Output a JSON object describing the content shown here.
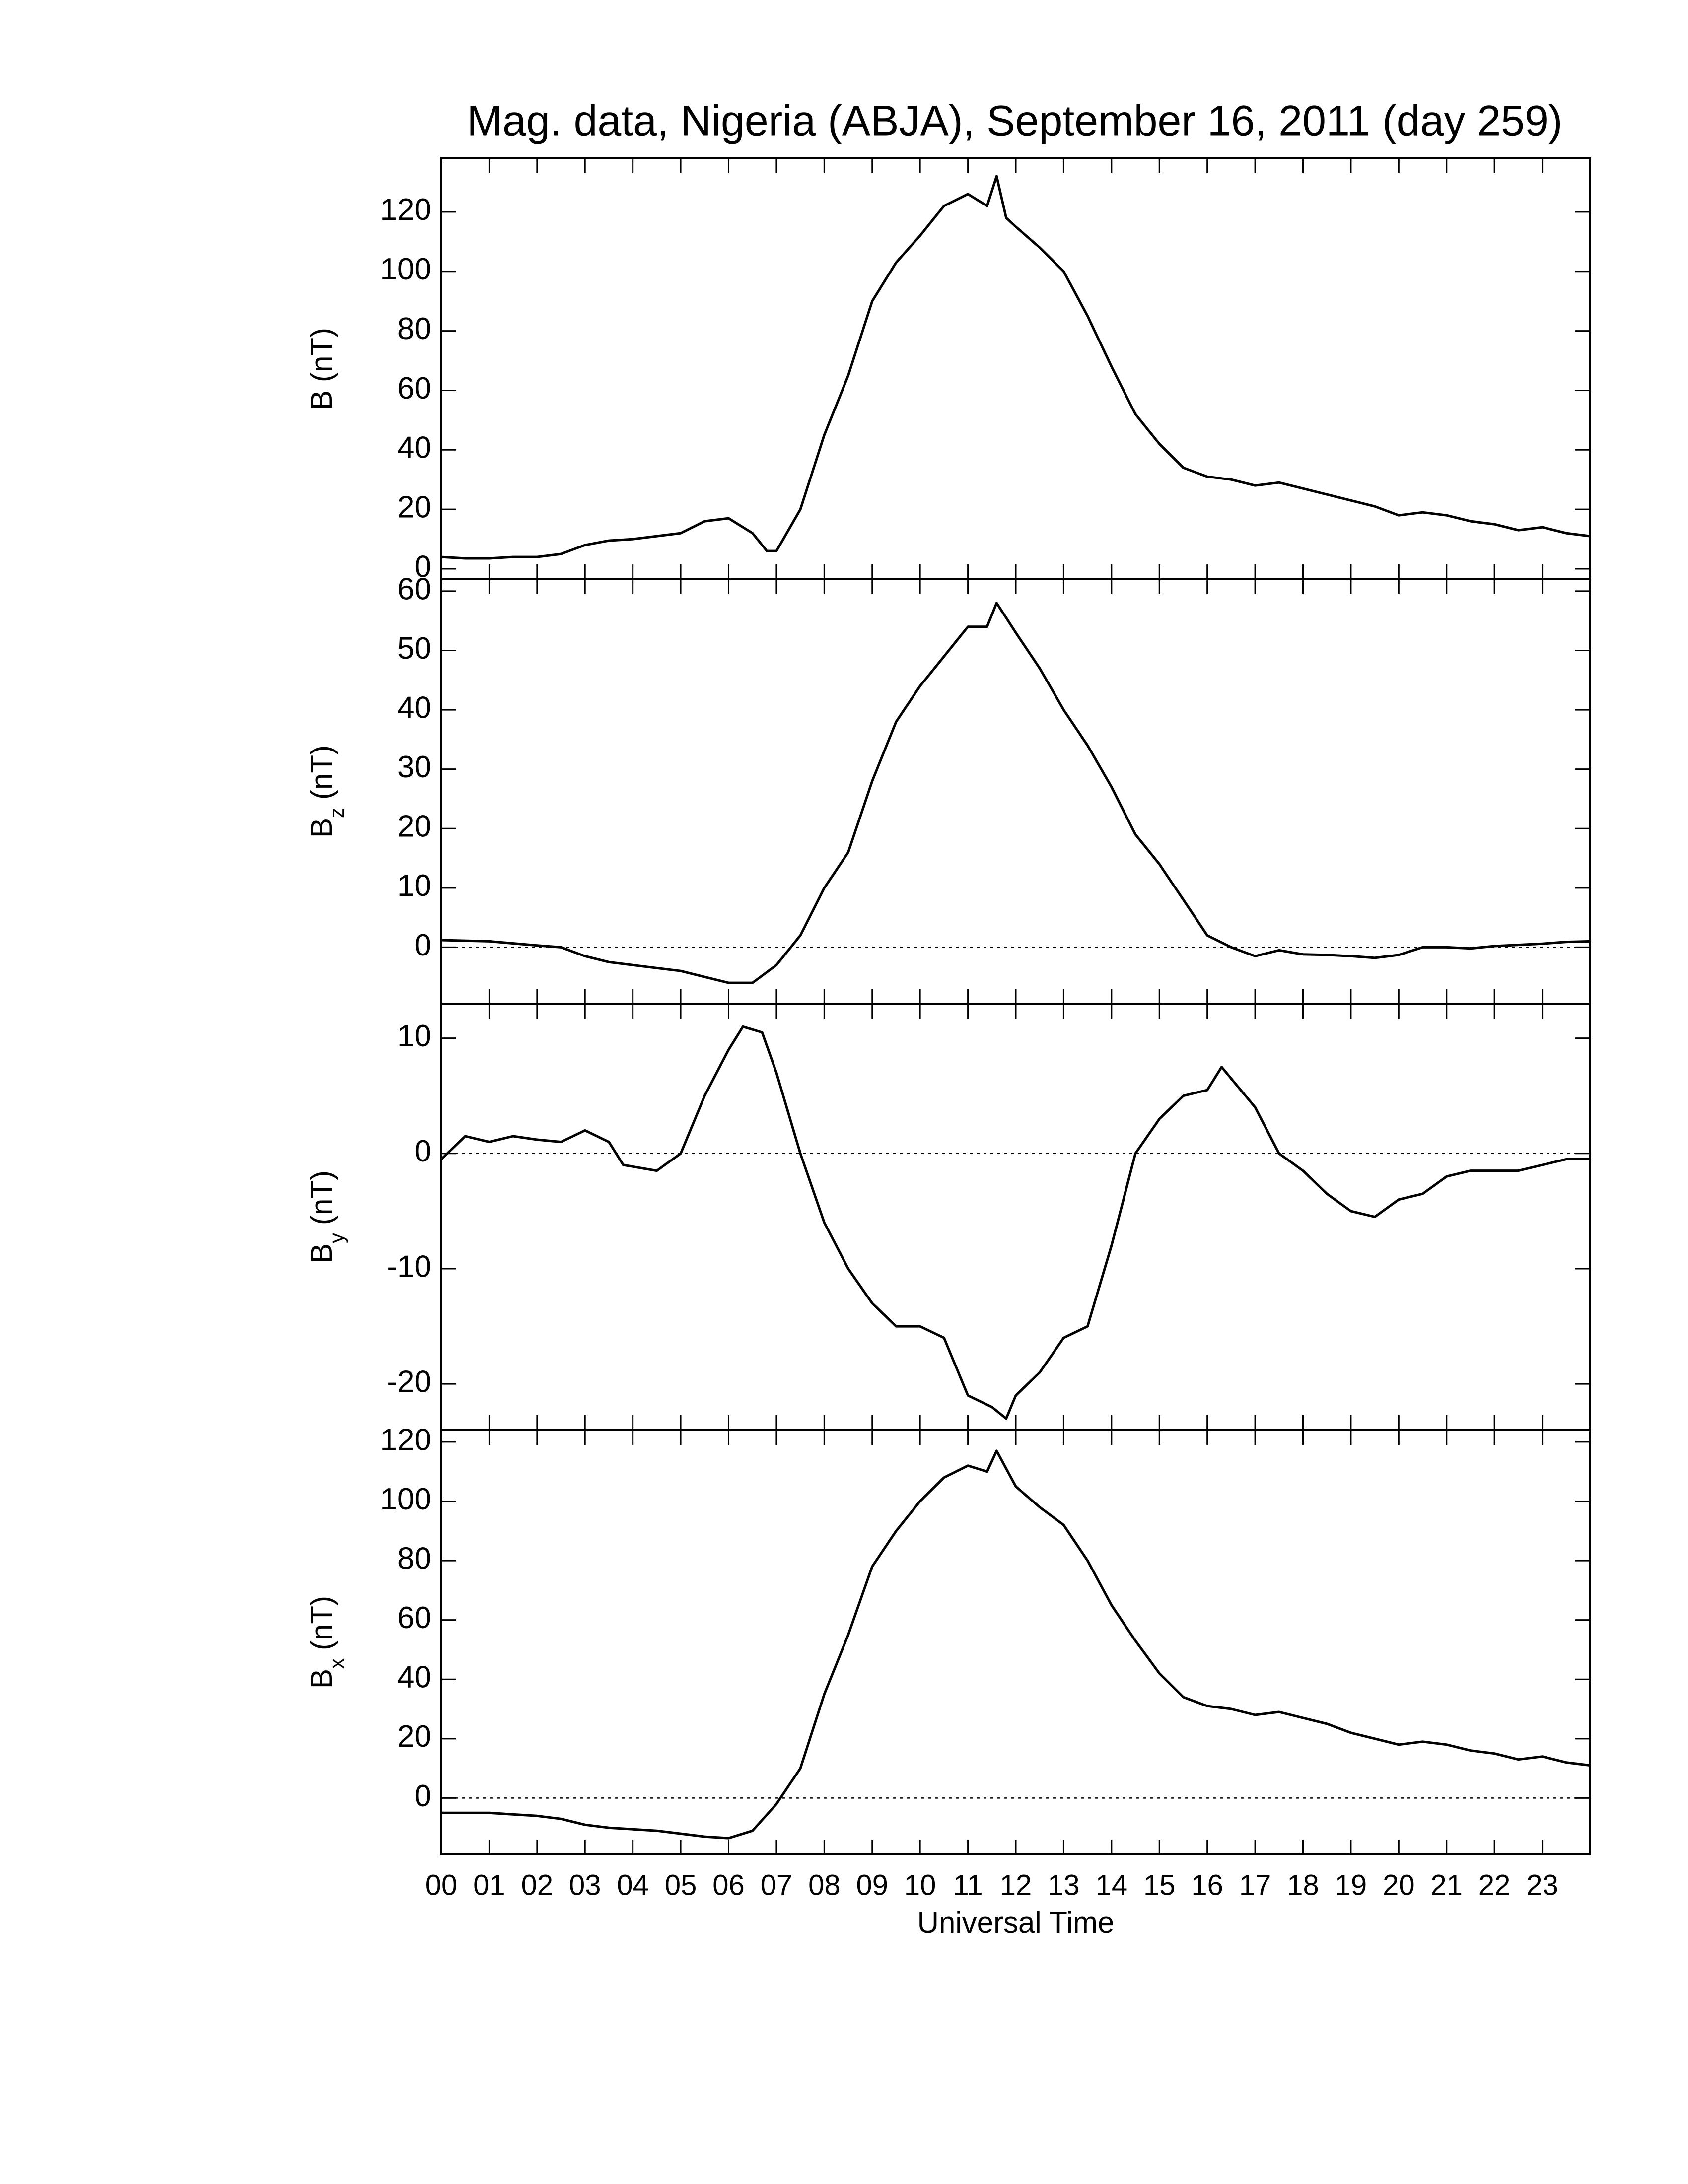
{
  "chart_data": [
    {
      "type": "line",
      "title": "Mag. data, Nigeria (ABJA), September 16, 2011 (day 259)",
      "ylabel": "B",
      "ylabel_unit": "(nT)",
      "ylim": [
        -3.5,
        138
      ],
      "yticks": [
        0,
        20,
        40,
        60,
        80,
        100,
        120
      ],
      "zero_line": false,
      "color": "#000000",
      "x": [
        0,
        0.5,
        1,
        1.5,
        2,
        2.5,
        3,
        3.5,
        4,
        4.5,
        5,
        5.5,
        6,
        6.5,
        6.8,
        7,
        7.5,
        8,
        8.5,
        9,
        9.5,
        10,
        10.5,
        11,
        11.4,
        11.6,
        11.8,
        12,
        12.5,
        13,
        13.5,
        14,
        14.5,
        15,
        15.5,
        16,
        16.5,
        17,
        17.5,
        18,
        18.5,
        19,
        19.5,
        20,
        20.5,
        21,
        21.5,
        22,
        22.5,
        23,
        23.5,
        24
      ],
      "values": [
        4,
        3.5,
        3.5,
        4,
        4,
        5,
        8,
        9.5,
        10,
        11,
        12,
        16,
        17,
        12,
        6,
        6,
        20,
        45,
        65,
        90,
        103,
        112,
        122,
        126,
        122,
        132,
        118,
        115,
        108,
        100,
        85,
        68,
        52,
        42,
        34,
        31,
        30,
        28,
        29,
        27,
        25,
        23,
        21,
        18,
        19,
        18,
        16,
        15,
        13,
        14,
        12,
        11
      ]
    },
    {
      "type": "line",
      "ylabel": "B",
      "ylabel_sub": "z",
      "ylabel_unit": "(nT)",
      "ylim": [
        -9.5,
        62
      ],
      "yticks": [
        0,
        10,
        20,
        30,
        40,
        50,
        60
      ],
      "zero_line": true,
      "color": "#000000",
      "x": [
        0,
        1,
        2,
        2.5,
        3,
        3.5,
        4,
        4.5,
        5,
        5.5,
        6,
        6.5,
        7,
        7.5,
        8,
        8.5,
        9,
        9.5,
        10,
        10.5,
        11,
        11.4,
        11.6,
        12,
        12.5,
        13,
        13.5,
        14,
        14.5,
        15,
        15.5,
        16,
        16.5,
        17,
        17.5,
        18,
        18.5,
        19,
        19.5,
        20,
        20.5,
        21,
        21.5,
        22,
        22.5,
        23,
        23.5,
        24
      ],
      "values": [
        1.2,
        1,
        0.3,
        0,
        -1.5,
        -2.5,
        -3,
        -3.5,
        -4,
        -5,
        -6,
        -6,
        -3,
        2,
        10,
        16,
        28,
        38,
        44,
        49,
        54,
        54,
        58,
        53,
        47,
        40,
        34,
        27,
        19,
        14,
        8,
        2,
        0,
        -1.5,
        -0.5,
        -1.2,
        -1.3,
        -1.5,
        -1.8,
        -1.3,
        0,
        0,
        -0.2,
        0.2,
        0.4,
        0.6,
        0.9,
        1
      ]
    },
    {
      "type": "line",
      "ylabel": "B",
      "ylabel_sub": "y",
      "ylabel_unit": "(nT)",
      "ylim": [
        -24,
        13
      ],
      "yticks": [
        -20,
        -10,
        0,
        10
      ],
      "zero_line": true,
      "color": "#000000",
      "x": [
        0,
        0.5,
        1,
        1.5,
        2,
        2.5,
        3,
        3.5,
        3.8,
        4.5,
        5,
        5.5,
        6,
        6.3,
        6.7,
        7,
        7.5,
        8,
        8.5,
        9,
        9.5,
        10,
        10.5,
        11,
        11.5,
        11.8,
        12,
        12.5,
        13,
        13.5,
        14,
        14.5,
        15,
        15.5,
        16,
        16.3,
        16.8,
        17,
        17.5,
        18,
        18.5,
        19,
        19.5,
        20,
        20.5,
        21,
        21.5,
        22,
        22.5,
        23,
        23.5,
        24
      ],
      "values": [
        -0.5,
        1.5,
        1,
        1.5,
        1.2,
        1,
        2,
        1,
        -1,
        -1.5,
        0,
        5,
        9,
        11,
        10.5,
        7,
        0,
        -6,
        -10,
        -13,
        -15,
        -15,
        -16,
        -21,
        -22,
        -23,
        -21,
        -19,
        -16,
        -15,
        -8,
        0,
        3,
        5,
        5.5,
        7.5,
        5,
        4,
        0,
        -1.5,
        -3.5,
        -5,
        -5.5,
        -4,
        -3.5,
        -2,
        -1.5,
        -1.5,
        -1.5,
        -1,
        -0.5,
        -0.5
      ]
    },
    {
      "type": "line",
      "ylabel": "B",
      "ylabel_sub": "x",
      "ylabel_unit": "(nT)",
      "ylim": [
        -19,
        124
      ],
      "yticks": [
        0,
        20,
        40,
        60,
        80,
        100,
        120
      ],
      "zero_line": true,
      "color": "#000000",
      "xlabel": "Universal Time",
      "xlim": [
        0,
        24
      ],
      "xticks": [
        {
          "value": 0,
          "label": "00"
        },
        {
          "value": 1,
          "label": "01"
        },
        {
          "value": 2,
          "label": "02"
        },
        {
          "value": 3,
          "label": "03"
        },
        {
          "value": 4,
          "label": "04"
        },
        {
          "value": 5,
          "label": "05"
        },
        {
          "value": 6,
          "label": "06"
        },
        {
          "value": 7,
          "label": "07"
        },
        {
          "value": 8,
          "label": "08"
        },
        {
          "value": 9,
          "label": "09"
        },
        10,
        11,
        12,
        13,
        14,
        15,
        16,
        17,
        18,
        19,
        20,
        21,
        22,
        23
      ],
      "x": [
        0,
        1,
        2,
        2.5,
        3,
        3.5,
        4,
        4.5,
        5,
        5.5,
        6,
        6.5,
        7,
        7.5,
        8,
        8.5,
        9,
        9.5,
        10,
        10.5,
        11,
        11.4,
        11.6,
        12,
        12.5,
        13,
        13.5,
        14,
        14.5,
        15,
        15.5,
        16,
        16.5,
        17,
        17.5,
        18,
        18.5,
        19,
        19.5,
        20,
        20.5,
        21,
        21.5,
        22,
        22.5,
        23,
        23.5,
        24
      ],
      "values": [
        -5,
        -5,
        -6,
        -7,
        -9,
        -10,
        -10.5,
        -11,
        -12,
        -13,
        -13.5,
        -11,
        -2,
        10,
        35,
        55,
        78,
        90,
        100,
        108,
        112,
        110,
        117,
        105,
        98,
        92,
        80,
        65,
        53,
        42,
        34,
        31,
        30,
        28,
        29,
        27,
        25,
        22,
        20,
        18,
        19,
        18,
        16,
        15,
        13,
        14,
        12,
        11
      ]
    }
  ]
}
